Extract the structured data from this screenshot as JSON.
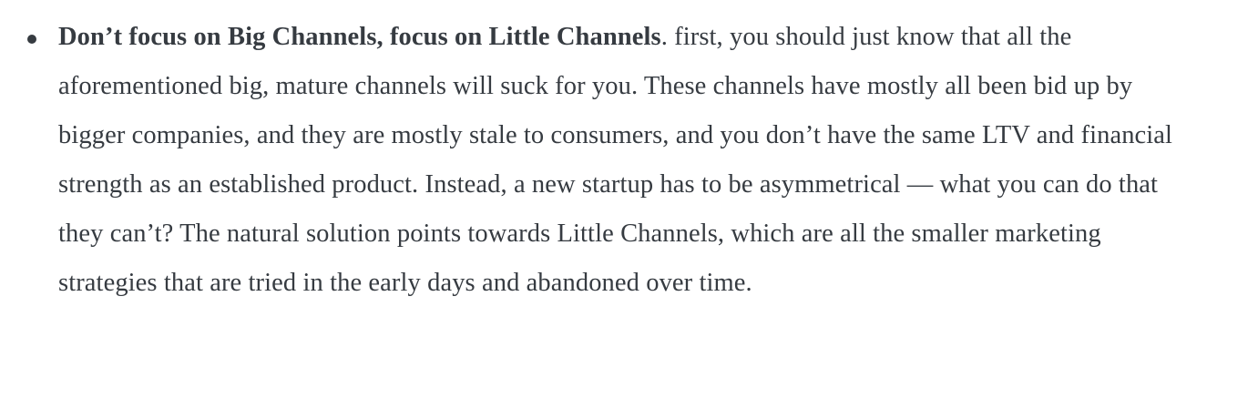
{
  "page": {
    "background_color": "#ffffff",
    "text_color": "#363b41"
  },
  "bullet_item": {
    "bold_lead": "Don’t focus on Big Channels, focus on Little Channels",
    "body_text": ". first, you should just know that all the aforementioned big, mature channels will suck for you. These channels have mostly all been bid up by bigger companies, and they are mostly stale to consumers, and you don’t have the same LTV and financial strength as an established product. Instead, a new startup has to be asymmetrical — what you can do that they can’t? The natural solution points towards Little Channels, which are all the smaller marketing strategies that are tried in the early days and abandoned over time."
  }
}
